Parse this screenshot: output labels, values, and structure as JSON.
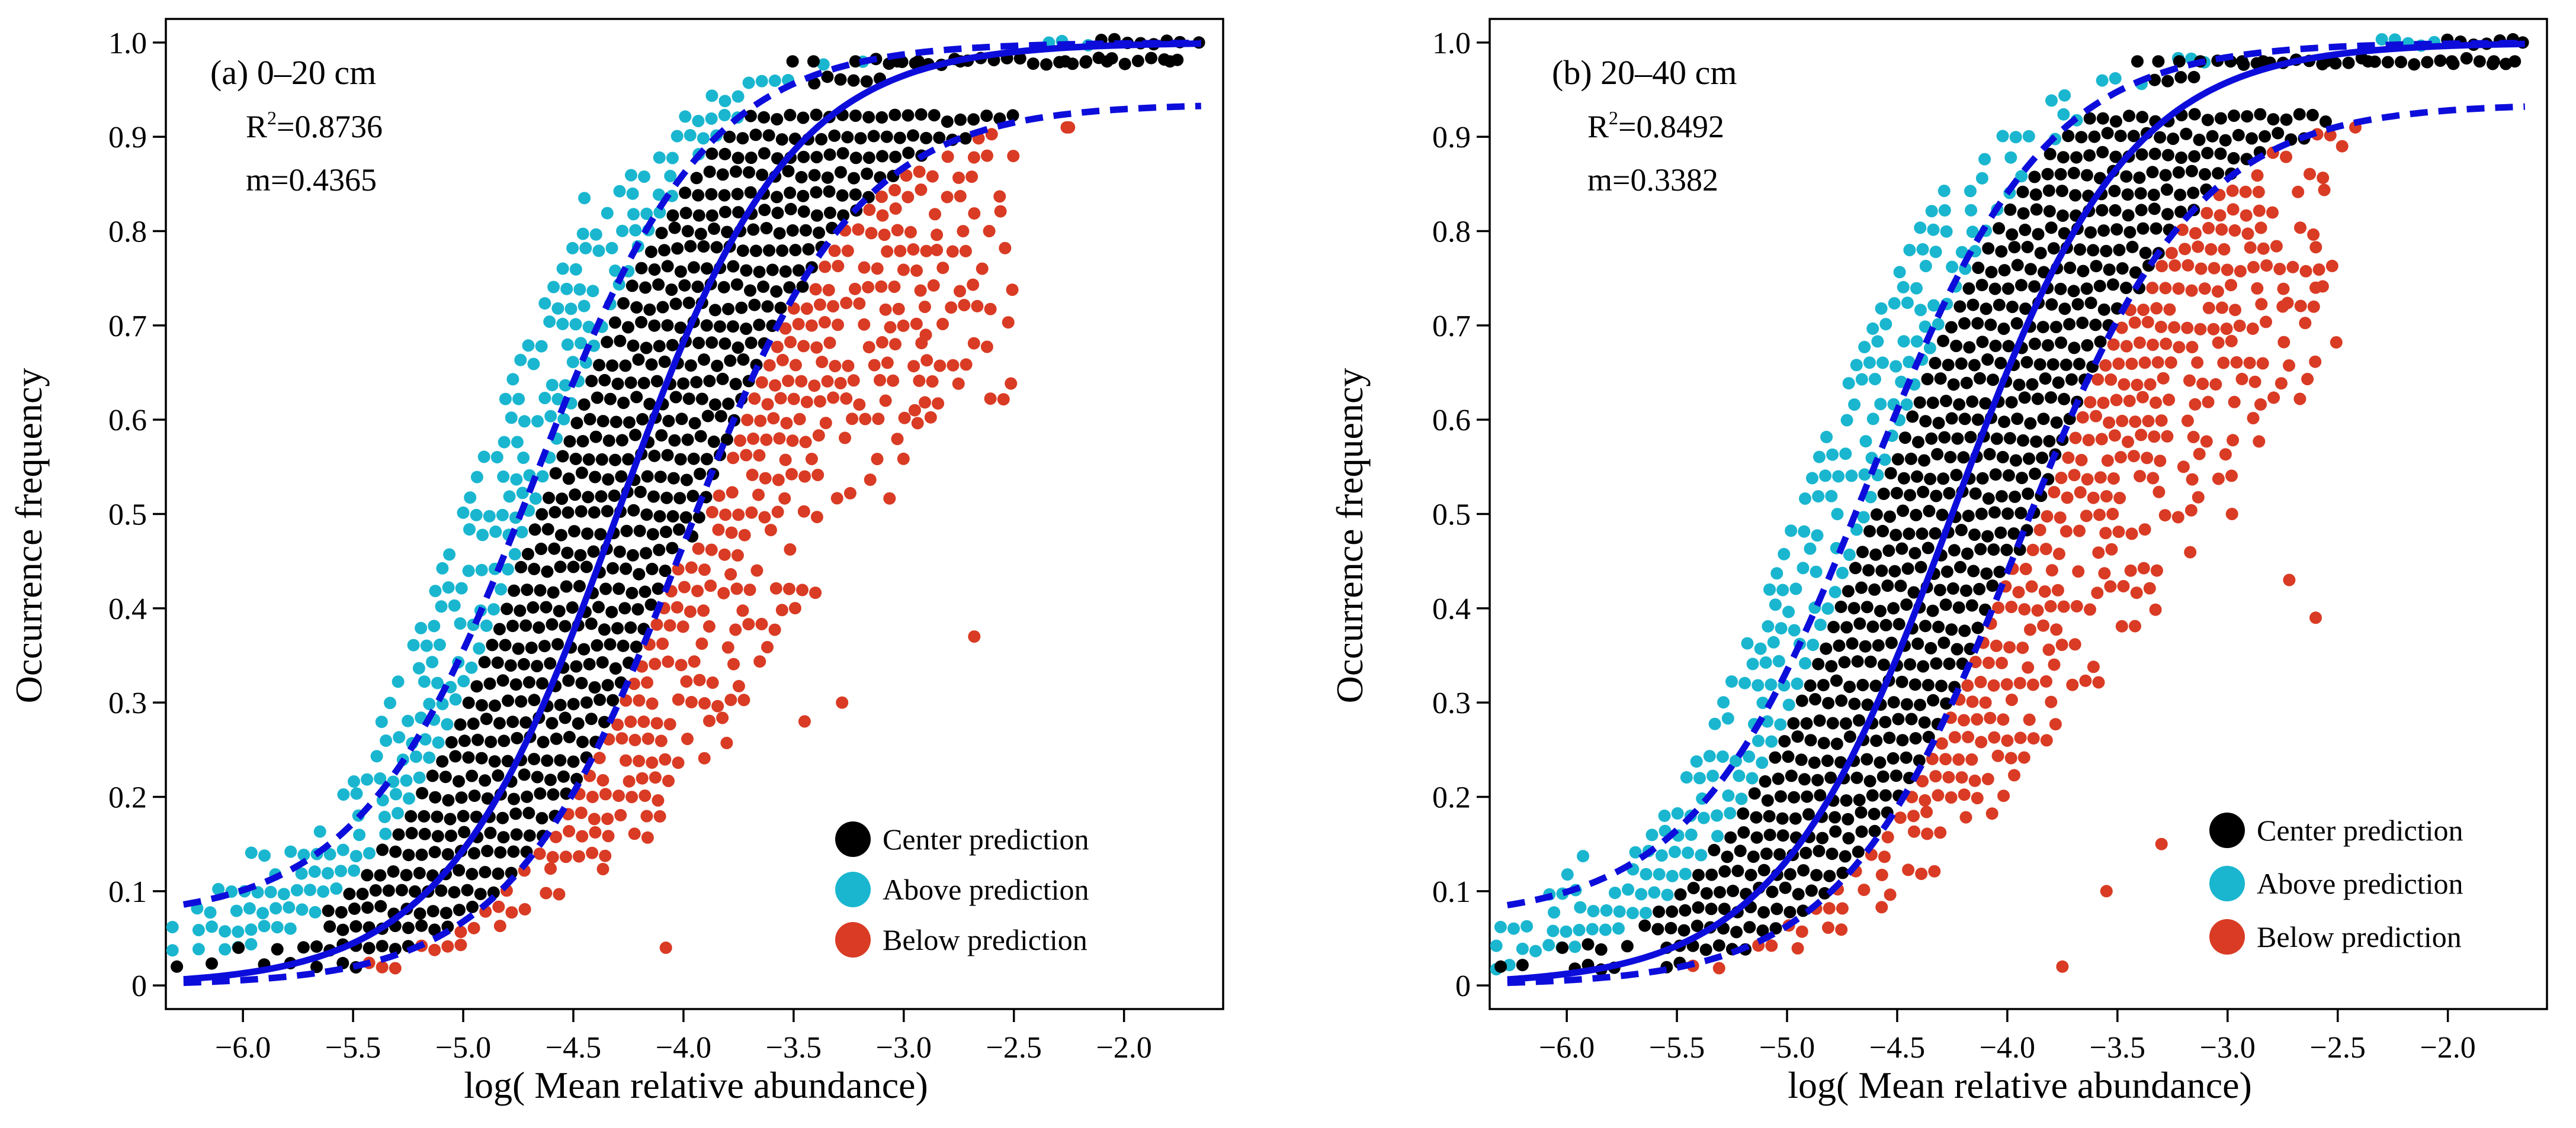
{
  "colors": {
    "center": "#000000",
    "above": "#1AB6CF",
    "below": "#D93B24",
    "curve": "#0D0DDB"
  },
  "legend": {
    "center": "Center prediction",
    "above": "Above prediction",
    "below": "Below prediction"
  },
  "chart_data": [
    {
      "type": "scatter",
      "panel": "a",
      "title": "(a) 0–20 cm",
      "r2_label": "R",
      "r2_sup": "2",
      "r2_value": "=0.8736",
      "m_label": "m=0.4365",
      "m": 0.4365,
      "mid": -4.3,
      "slope": 2.55,
      "xlabel": "log( Mean relative abundance)",
      "ylabel": "Occurrence frequency",
      "xlim": [
        -6.35,
        -1.55
      ],
      "ylim": [
        -0.025,
        1.025
      ],
      "xticks": [
        -6.0,
        -5.5,
        -5.0,
        -4.5,
        -4.0,
        -3.5,
        -3.0,
        -2.5,
        -2.0
      ],
      "xtick_labels": [
        "−6.0",
        "−5.5",
        "−5.0",
        "−4.5",
        "−4.0",
        "−3.5",
        "−3.0",
        "−2.5",
        "−2.0"
      ],
      "yticks": [
        0,
        0.1,
        0.2,
        0.3,
        0.4,
        0.5,
        0.6,
        0.7,
        0.8,
        0.9,
        1.0
      ],
      "ytick_labels": [
        "0",
        "0.1",
        "0.2",
        "0.3",
        "0.4",
        "0.5",
        "0.6",
        "0.7",
        "0.8",
        "0.9",
        "1.0"
      ],
      "series": [
        {
          "name": "Center prediction",
          "description": "dense band of points along the fitted sigmoid"
        },
        {
          "name": "Above prediction",
          "description": "points above the upper 95% bound"
        },
        {
          "name": "Below prediction",
          "description": "points below the lower 95% bound"
        },
        {
          "name": "Neutral model fit",
          "style": "solid"
        },
        {
          "name": "95% confidence bounds",
          "style": "dashed",
          "upper_plateau": 1.0,
          "lower_plateau": 0.935
        }
      ],
      "outliers_below": [
        [
          -2.68,
          0.37
        ],
        [
          -4.08,
          0.04
        ],
        [
          -3.28,
          0.3
        ],
        [
          -3.45,
          0.28
        ],
        [
          -2.95,
          0.61
        ],
        [
          -2.9,
          0.69
        ],
        [
          -2.85,
          0.78
        ],
        [
          -2.26,
          0.91
        ],
        [
          -2.25,
          0.91
        ]
      ],
      "outliers_above": [
        [
          -4.45,
          0.835
        ]
      ]
    },
    {
      "type": "scatter",
      "panel": "b",
      "title": "(b) 20–40 cm",
      "r2_label": "R",
      "r2_sup": "2",
      "r2_value": "=0.8492",
      "m_label": "m=0.3382",
      "m": 0.3382,
      "mid": -4.25,
      "slope": 2.5,
      "xlabel": "log( Mean relative abundance)",
      "ylabel": "Occurrence frequency",
      "xlim": [
        -6.35,
        -1.55
      ],
      "ylim": [
        -0.025,
        1.025
      ],
      "xticks": [
        -6.0,
        -5.5,
        -5.0,
        -4.5,
        -4.0,
        -3.5,
        -3.0,
        -2.5,
        -2.0
      ],
      "xtick_labels": [
        "−6.0",
        "−5.5",
        "−5.0",
        "−4.5",
        "−4.0",
        "−3.5",
        "−3.0",
        "−2.5",
        "−2.0"
      ],
      "yticks": [
        0,
        0.1,
        0.2,
        0.3,
        0.4,
        0.5,
        0.6,
        0.7,
        0.8,
        0.9,
        1.0
      ],
      "ytick_labels": [
        "0",
        "0.1",
        "0.2",
        "0.3",
        "0.4",
        "0.5",
        "0.6",
        "0.7",
        "0.8",
        "0.9",
        "1.0"
      ],
      "series": [
        {
          "name": "Center prediction",
          "description": "dense band of points along the fitted sigmoid"
        },
        {
          "name": "Above prediction",
          "description": "points above the upper 95% bound"
        },
        {
          "name": "Below prediction",
          "description": "points below the lower 95% bound"
        },
        {
          "name": "Neutral model fit",
          "style": "solid"
        },
        {
          "name": "95% confidence bounds",
          "style": "dashed",
          "upper_plateau": 1.0,
          "lower_plateau": 0.935
        }
      ],
      "outliers_below": [
        [
          -2.6,
          0.39
        ],
        [
          -2.72,
          0.43
        ],
        [
          -2.6,
          0.74
        ],
        [
          -2.75,
          0.72
        ],
        [
          -2.48,
          0.89
        ],
        [
          -2.42,
          0.91
        ],
        [
          -3.75,
          0.02
        ],
        [
          -3.55,
          0.1
        ],
        [
          -3.3,
          0.15
        ],
        [
          -2.98,
          0.5
        ],
        [
          -3.2,
          0.55
        ]
      ],
      "outliers_above": []
    }
  ]
}
